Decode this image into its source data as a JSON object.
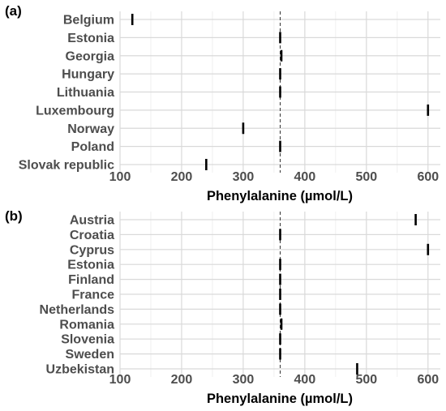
{
  "chart_data": [
    {
      "panel_label": "(a)",
      "type": "scatter",
      "categories": [
        "Belgium",
        "Estonia",
        "Georgia",
        "Hungary",
        "Lithuania",
        "Luxembourg",
        "Norway",
        "Poland",
        "Slovak republic"
      ],
      "values": [
        120,
        360,
        362,
        360,
        360,
        600,
        300,
        360,
        240
      ],
      "xlabel": "Phenylalanine (µmol/L)",
      "xlim": [
        100,
        620
      ],
      "xticks": [
        "100",
        "200",
        "300",
        "400",
        "500",
        "600"
      ],
      "reference_line": 360,
      "grid": true
    },
    {
      "panel_label": "(b)",
      "type": "scatter",
      "categories": [
        "Austria",
        "Croatia",
        "Cyprus",
        "Estonia",
        "Finland",
        "France",
        "Netherlands",
        "Romania",
        "Slovenia",
        "Sweden",
        "Uzbekistan"
      ],
      "values": [
        580,
        360,
        600,
        360,
        360,
        360,
        360,
        362,
        360,
        360,
        485
      ],
      "xlabel": "Phenylalanine (µmol/L)",
      "xlim": [
        100,
        620
      ],
      "xticks": [
        "100",
        "200",
        "300",
        "400",
        "500",
        "600"
      ],
      "reference_line": 360,
      "grid": true
    }
  ]
}
